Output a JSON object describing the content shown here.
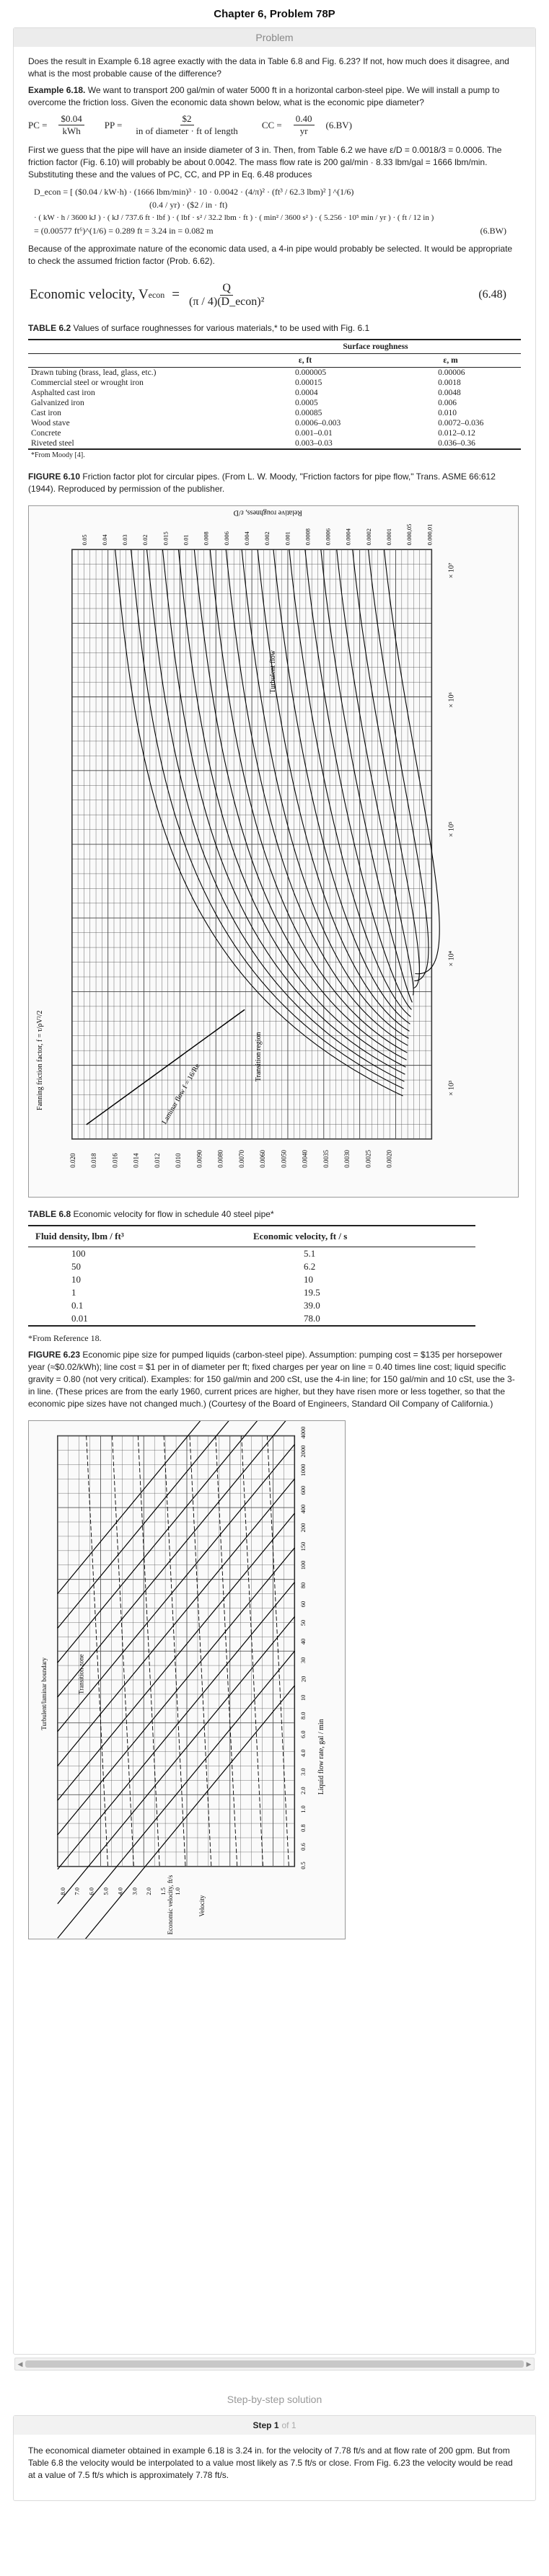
{
  "page": {
    "title": "Chapter 6, Problem 78P"
  },
  "problem": {
    "header": "Problem",
    "question": "Does the result in Example 6.18 agree exactly with the data in Table 6.8 and Fig. 6.23? If not, how much does it disagree, and what is the most probable cause of the difference?",
    "example_label": "Example 6.18.",
    "example_text": "We want to transport 200 gal/min of water 5000 ft in a horizontal carbon-steel pipe. We will install a pump to overcome the friction loss. Given the economic data shown below, what is the economic pipe diameter?",
    "pc_lhs": "PC =",
    "pc_num": "$0.04",
    "pc_den": "kWh",
    "pp_lhs": "PP =",
    "pp_num": "$2",
    "pp_den": "in of diameter · ft of length",
    "cc_lhs": "CC =",
    "cc_num": "0.40",
    "cc_den": "yr",
    "eq_tag_1": "(6.BV)",
    "guess_text": "First we guess that the pipe will have an inside diameter of 3 in. Then, from Table 6.2 we have ε/D = 0.0018/3 = 0.0006. The friction factor (Fig. 6.10) will probably be about 0.0042. The mass flow rate is 200 gal/min · 8.33 lbm/gal = 1666 lbm/min. Substituting these and the values of PC, CC, and PP in Eq. 6.48 produces",
    "d_econ_line1": "D_econ = [ ($0.04 / kW·h) · (1666 lbm/min)³ · 10 · 0.0042 · (4/π)² · (ft³ / 62.3 lbm)² ] ^(1/6)",
    "d_econ_line2": "(0.4 / yr) · ($2 / in · ft)",
    "d_econ_line3": "· ( kW · h / 3600 kJ ) · ( kJ / 737.6 ft · lbf ) · ( lbf · s² / 32.2 lbm · ft ) · ( min² / 3600 s² ) · ( 5.256 · 10⁵ min / yr ) · ( ft / 12 in )",
    "d_econ_result": "= (0.00577 ft⁶)^(1/6) = 0.289 ft = 3.24 in = 0.082 m",
    "eq_tag_2": "(6.BW)",
    "because_text": "Because of the approximate nature of the economic data used, a 4-in pipe would probably be selected. It would be appropriate to check the assumed friction factor (Prob. 6.62).",
    "velocity_eq_label": "Economic velocity, V",
    "velocity_eq_sub": "econ",
    "velocity_eq_rhs_num": "Q",
    "velocity_eq_rhs_den": "(π / 4)(D_econ)²",
    "eq_tag_3": "(6.48)",
    "table62_caption_bold": "TABLE 6.2",
    "table62_caption": "Values of surface roughnesses for various materials,* to be used with Fig. 6.1",
    "table62_group_header": "Surface roughness",
    "table62_col_ft": "ε, ft",
    "table62_col_m": "ε, m",
    "table62_rows": [
      {
        "material": "Drawn tubing (brass, lead, glass, etc.)",
        "ft": "0.000005",
        "m": "0.00006"
      },
      {
        "material": "Commercial steel or wrought iron",
        "ft": "0.00015",
        "m": "0.0018"
      },
      {
        "material": "Asphalted cast iron",
        "ft": "0.0004",
        "m": "0.0048"
      },
      {
        "material": "Galvanized iron",
        "ft": "0.0005",
        "m": "0.006"
      },
      {
        "material": "Cast iron",
        "ft": "0.00085",
        "m": "0.010"
      },
      {
        "material": "Wood stave",
        "ft": "0.0006–0.003",
        "m": "0.0072–0.036"
      },
      {
        "material": "Concrete",
        "ft": "0.001–0.01",
        "m": "0.012–0.12"
      },
      {
        "material": "Riveted steel",
        "ft": "0.003–0.03",
        "m": "0.036–0.36"
      }
    ],
    "table62_footnote": "*From Moody [4].",
    "fig610_caption_bold": "FIGURE 6.10",
    "fig610_caption": "Friction factor plot for circular pipes. (From L. W. Moody, \"Friction factors for pipe flow,\" Trans. ASME 66:612 (1944). Reproduced by permission of the publisher.",
    "table68_caption_bold": "TABLE 6.8",
    "table68_caption": "Economic velocity for flow in schedule 40 steel pipe*",
    "table68_col1": "Fluid density, lbm / ft³",
    "table68_col2": "Economic velocity, ft / s",
    "table68_rows": [
      {
        "density": "100",
        "velocity": "5.1"
      },
      {
        "density": "50",
        "velocity": "6.2"
      },
      {
        "density": "10",
        "velocity": "10"
      },
      {
        "density": "1",
        "velocity": "19.5"
      },
      {
        "density": "0.1",
        "velocity": "39.0"
      },
      {
        "density": "0.01",
        "velocity": "78.0"
      }
    ],
    "table68_footnote": "*From Reference 18.",
    "fig623_caption_bold": "FIGURE 6.23",
    "fig623_caption": "Economic pipe size for pumped liquids (carbon-steel pipe). Assumption: pumping cost = $135 per horsepower year (≈$0.02/kWh); line cost = $1 per in of diameter per ft; fixed charges per year on line = 0.40 times line cost; liquid specific gravity = 0.80 (not very critical). Examples: for 150 gal/min and 200 cSt, use the 4-in line; for 150 gal/min and 10 cSt, use the 3-in line. (These prices are from the early 1960, current prices are higher, but they have risen more or less together, so that the economic pipe sizes have not changed much.) (Courtesy of the Board of Engineers, Standard Oil Company of California.)"
  },
  "moody_chart": {
    "left_axis_label": "Fanning friction factor, f = τ/ρV²/2",
    "left_ticks": [
      "0.020",
      "0.018",
      "0.016",
      "0.014",
      "0.012",
      "0.010",
      "0.0090",
      "0.0080",
      "0.0070",
      "0.0060",
      "0.0050",
      "0.0040",
      "0.0035",
      "0.0030",
      "0.0025",
      "0.0020"
    ],
    "right_axis_label": "Relative roughness, ε/D",
    "right_ticks": [
      "0.05",
      "0.04",
      "0.03",
      "0.02",
      "0.015",
      "0.01",
      "0.008",
      "0.006",
      "0.004",
      "0.002",
      "0.001",
      "0.0008",
      "0.0006",
      "0.0004",
      "0.0002",
      "0.0001",
      "0.000,05",
      "0.000,01"
    ],
    "region_laminar": "Laminar flow f = 16/Re",
    "region_transition": "Transition region",
    "region_turbulent": "Turbulent flow",
    "decade_labels": [
      "× 10³",
      "× 10⁴",
      "× 10⁵",
      "× 10⁶",
      "× 10⁷"
    ]
  },
  "economic_chart": {
    "right_axis_label": "Liquid flow rate, gal / min",
    "right_ticks": [
      "4000",
      "2000",
      "1000",
      "600",
      "400",
      "200",
      "150",
      "100",
      "80",
      "60",
      "50",
      "40",
      "30",
      "20",
      "10",
      "8.0",
      "6.0",
      "4.0",
      "3.0",
      "2.0",
      "1.0",
      "0.8",
      "0.6",
      "0.5"
    ],
    "left_axis_label": "Economic velocity, ft/s",
    "bottom_ticks": [
      "8.0",
      "7.0",
      "6.0",
      "5.0",
      "4.0",
      "3.0",
      "2.0",
      "1.5",
      "1.0"
    ],
    "labels": [
      "Turbulent/laminar boundary",
      "Transition zone",
      "Velocity"
    ]
  },
  "solution": {
    "title": "Step-by-step solution",
    "step_label": "Step 1",
    "step_of": "of 1",
    "text": "The economical diameter obtained in example 6.18 is 3.24 in. for the velocity of 7.78 ft/s and at flow rate of 200 gpm. But from Table 6.8 the velocity would be interpolated to a value most likely as 7.5 ft/s or close. From Fig. 6.23 the velocity would be read at a value of 7.5 ft/s which is approximately 7.78 ft/s."
  }
}
